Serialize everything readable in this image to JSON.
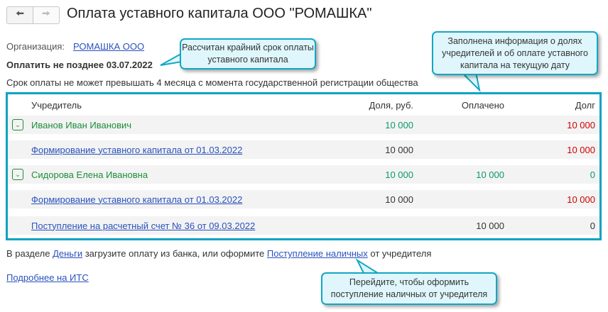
{
  "header": {
    "title": "Оплата уставного капитала ООО \"РОМАШКА\"",
    "back_icon": "arrow-left",
    "forward_icon": "arrow-right"
  },
  "org": {
    "label": "Организация:",
    "value": "РОМАШКА ООО"
  },
  "deadline": "Оплатить не позднее 03.07.2022",
  "note": "Срок оплаты не может превышать 4 месяца с момента государственной регистрации общества",
  "table": {
    "headers": {
      "founder": "Учредитель",
      "share": "Доля, руб.",
      "paid": "Оплачено",
      "debt": "Долг"
    },
    "rows": [
      {
        "name": "Иванов Иван Иванович",
        "share": "10 000",
        "paid": "",
        "debt": "10 000"
      },
      {
        "name": "Формирование уставного капитала от 01.03.2022",
        "share": "10 000",
        "paid": "",
        "debt": "10 000"
      },
      {
        "name": "Сидорова Елена Ивановна",
        "share": "10 000",
        "paid": "10 000",
        "debt": "0"
      },
      {
        "name": "Формирование уставного капитала от 01.03.2022",
        "share": "10 000",
        "paid": "",
        "debt": "10 000"
      },
      {
        "name": "Поступление на расчетный счет № 36 от 09.03.2022",
        "share": "",
        "paid": "10 000",
        "debt": "0"
      }
    ]
  },
  "footer": {
    "t1": "В разделе ",
    "link1": "Деньги",
    "t2": " загрузите оплату из банка, или оформите ",
    "link2": "Поступление наличных",
    "t3": " от учредителя",
    "its": "Подробнее на ИТС"
  },
  "callouts": {
    "c1": "Рассчитан крайний срок оплаты уставного капитала",
    "c2": "Заполнена информация о долях учредителей и об оплате уставного капитала на текущую дату",
    "c3": "Перейдите, чтобы оформить поступление наличных от учредителя"
  },
  "colors": {
    "accent": "#0aa3c2",
    "green": "#1c8e3a",
    "red": "#d00000",
    "link": "#2a52be"
  }
}
